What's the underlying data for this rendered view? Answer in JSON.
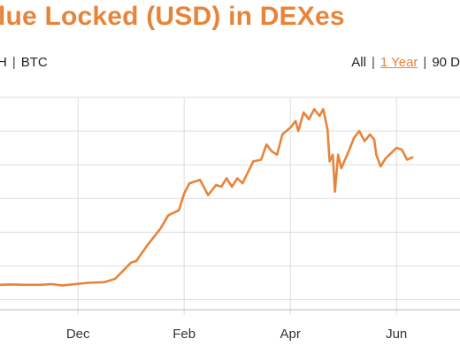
{
  "title": "lue Locked (USD) in DEXes",
  "asset_toggle": {
    "left_fragment": "H",
    "btc": "BTC"
  },
  "range_toggle": {
    "all": "All",
    "one_year": "1 Year",
    "ninety_days": "90 D"
  },
  "colors": {
    "accent": "#e8843a",
    "line": "#e8843a",
    "grid": "#dddddd"
  },
  "chart_data": {
    "type": "line",
    "title": "",
    "xlabel": "",
    "ylabel": "",
    "grid": true,
    "x_ticks": [
      "Dec",
      "Feb",
      "Apr",
      "Jun"
    ],
    "series": [
      {
        "values": [
          [
            -0.47,
            0.64
          ],
          [
            -0.3,
            0.65
          ],
          [
            0.0,
            0.64
          ],
          [
            0.3,
            0.64
          ],
          [
            0.5,
            0.66
          ],
          [
            0.7,
            0.62
          ],
          [
            0.95,
            0.66
          ],
          [
            1.2,
            0.7
          ],
          [
            1.5,
            0.72
          ],
          [
            1.7,
            0.82
          ],
          [
            2.0,
            1.3
          ],
          [
            2.1,
            1.35
          ],
          [
            2.3,
            1.8
          ],
          [
            2.55,
            2.3
          ],
          [
            2.7,
            2.7
          ],
          [
            2.9,
            2.85
          ],
          [
            3.0,
            3.35
          ],
          [
            3.1,
            3.65
          ],
          [
            3.3,
            3.75
          ],
          [
            3.45,
            3.3
          ],
          [
            3.6,
            3.6
          ],
          [
            3.7,
            3.55
          ],
          [
            3.8,
            3.8
          ],
          [
            3.9,
            3.55
          ],
          [
            4.0,
            3.8
          ],
          [
            4.1,
            3.65
          ],
          [
            4.3,
            4.3
          ],
          [
            4.45,
            4.35
          ],
          [
            4.55,
            4.8
          ],
          [
            4.65,
            4.6
          ],
          [
            4.75,
            4.5
          ],
          [
            4.85,
            5.1
          ],
          [
            5.0,
            5.3
          ],
          [
            5.1,
            5.5
          ],
          [
            5.15,
            5.2
          ],
          [
            5.25,
            5.75
          ],
          [
            5.35,
            5.55
          ],
          [
            5.45,
            5.85
          ],
          [
            5.55,
            5.65
          ],
          [
            5.62,
            5.85
          ],
          [
            5.7,
            5.25
          ],
          [
            5.74,
            4.3
          ],
          [
            5.8,
            4.5
          ],
          [
            5.84,
            3.4
          ],
          [
            5.9,
            4.5
          ],
          [
            5.96,
            4.1
          ],
          [
            6.1,
            4.6
          ],
          [
            6.2,
            5.0
          ],
          [
            6.3,
            5.2
          ],
          [
            6.4,
            4.9
          ],
          [
            6.5,
            5.1
          ],
          [
            6.58,
            4.95
          ],
          [
            6.62,
            4.5
          ],
          [
            6.7,
            4.15
          ],
          [
            6.8,
            4.4
          ],
          [
            6.9,
            4.55
          ],
          [
            7.0,
            4.7
          ],
          [
            7.1,
            4.65
          ],
          [
            7.2,
            4.35
          ],
          [
            7.3,
            4.42
          ]
        ]
      }
    ],
    "xlim": [
      -0.47,
      7.35
    ],
    "ylim": [
      -0.1,
      6.2
    ]
  }
}
